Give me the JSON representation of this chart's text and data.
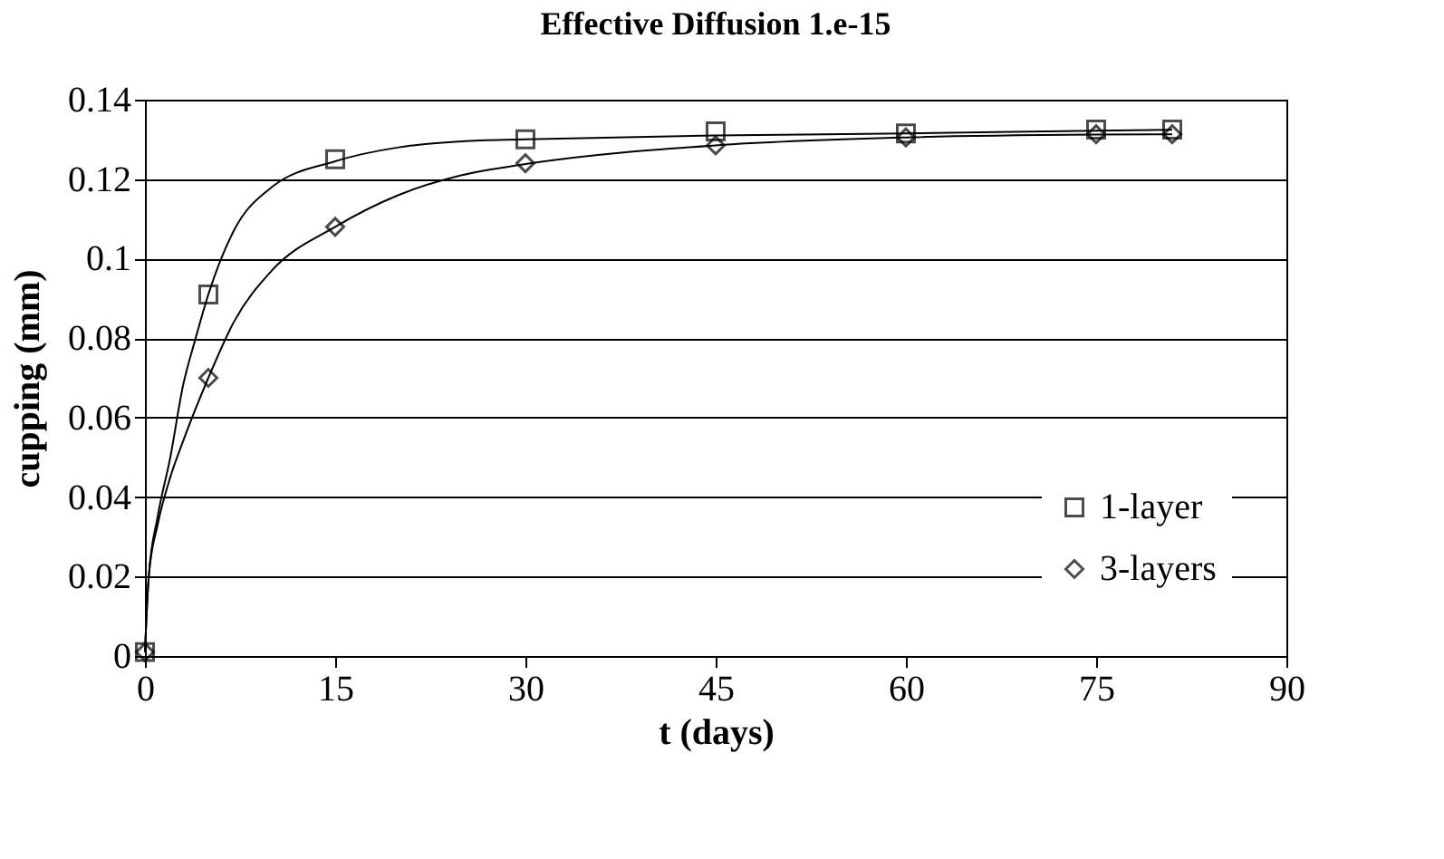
{
  "chart_data": {
    "type": "scatter",
    "title": "Effective Diffusion 1.e-15",
    "xlabel": "t (days)",
    "ylabel": "cupping (mm)",
    "xlim": [
      0,
      90
    ],
    "xticks": [
      0,
      15,
      30,
      45,
      60,
      75,
      90
    ],
    "ylim": [
      0,
      0.14
    ],
    "yticks": [
      0,
      0.02,
      0.04,
      0.06,
      0.08,
      0.1,
      0.12,
      0.14
    ],
    "grid": "y",
    "legend": "bottom right",
    "series": [
      {
        "name": "1-layer",
        "marker": "square",
        "color": "#000000",
        "x": [
          0,
          5,
          15,
          30,
          45,
          60,
          75,
          81
        ],
        "values": [
          0.001,
          0.091,
          0.125,
          0.13,
          0.132,
          0.1315,
          0.1325,
          0.1325
        ]
      },
      {
        "name": "3-layers",
        "marker": "diamond",
        "color": "#000000",
        "x": [
          0,
          5,
          15,
          30,
          45,
          60,
          75,
          81
        ],
        "values": [
          0.001,
          0.07,
          0.108,
          0.124,
          0.1285,
          0.1305,
          0.1313,
          0.1313
        ]
      },
      {
        "type": "line",
        "color": "#000000",
        "x": [
          0,
          0.3,
          1,
          2,
          3,
          4,
          5,
          7,
          10,
          15,
          20,
          25,
          30,
          45,
          60,
          75,
          81
        ],
        "values": [
          0.001,
          0.02,
          0.035,
          0.05,
          0.068,
          0.08,
          0.091,
          0.107,
          0.118,
          0.1245,
          0.128,
          0.1295,
          0.13,
          0.131,
          0.1315,
          0.1322,
          0.1324
        ]
      },
      {
        "type": "line",
        "color": "#000000",
        "x": [
          0,
          0.3,
          1,
          2,
          3,
          5,
          7,
          10,
          15,
          20,
          25,
          30,
          45,
          60,
          75,
          81
        ],
        "values": [
          0.001,
          0.02,
          0.033,
          0.045,
          0.054,
          0.07,
          0.084,
          0.097,
          0.108,
          0.116,
          0.121,
          0.1238,
          0.1285,
          0.1305,
          0.1312,
          0.1313
        ]
      }
    ]
  }
}
